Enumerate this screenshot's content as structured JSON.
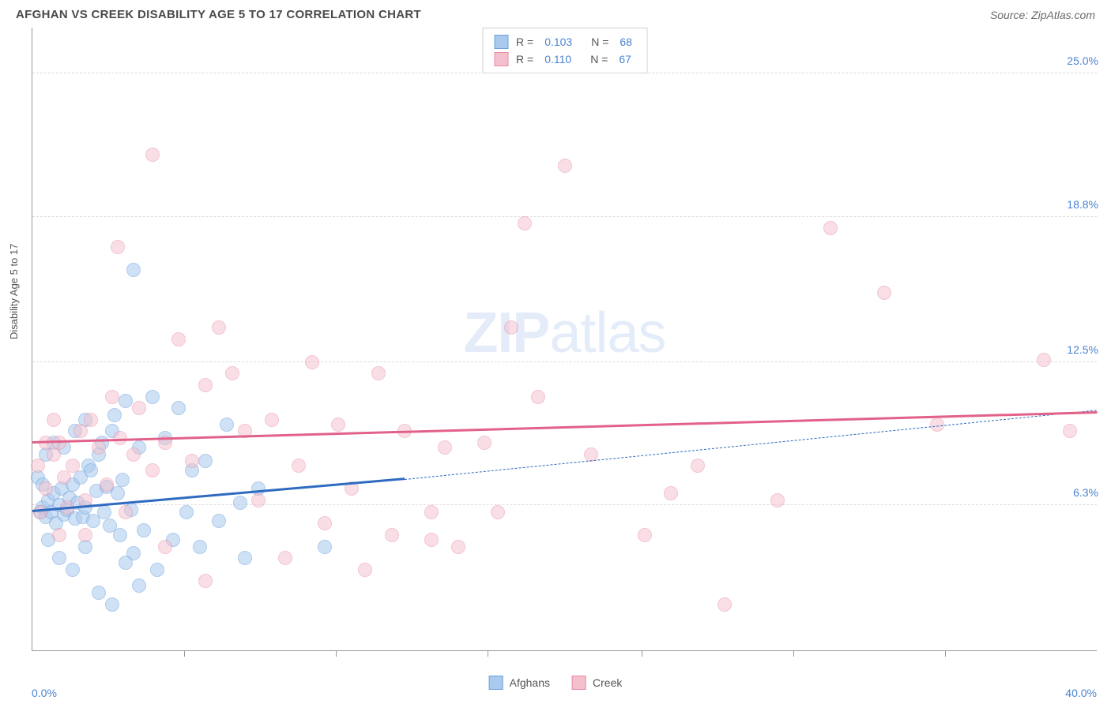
{
  "header": {
    "title": "AFGHAN VS CREEK DISABILITY AGE 5 TO 17 CORRELATION CHART",
    "source": "Source: ZipAtlas.com"
  },
  "watermark": {
    "zip": "ZIP",
    "atlas": "atlas"
  },
  "chart": {
    "type": "scatter",
    "ylabel": "Disability Age 5 to 17",
    "xlim": [
      0,
      40
    ],
    "ylim": [
      0,
      27
    ],
    "x_min_label": "0.0%",
    "x_max_label": "40.0%",
    "y_ticks": [
      {
        "value": 6.3,
        "label": "6.3%"
      },
      {
        "value": 12.5,
        "label": "12.5%"
      },
      {
        "value": 18.8,
        "label": "18.8%"
      },
      {
        "value": 25.0,
        "label": "25.0%"
      }
    ],
    "x_tick_positions": [
      5.7,
      11.4,
      17.1,
      22.9,
      28.6,
      34.3
    ],
    "grid_color": "#dcdcdc",
    "background_color": "#ffffff",
    "marker_radius": 9,
    "marker_stroke_width": 1.5,
    "series": [
      {
        "name": "Afghans",
        "fill_color": "#a9c9ee",
        "fill_opacity": 0.55,
        "stroke_color": "#6fa1db",
        "r_value": "0.103",
        "n_value": "68",
        "trend": {
          "color": "#2e6bc0",
          "x1": 0,
          "y1": 6.0,
          "x2": 14.0,
          "y2": 7.4,
          "dash_to_x": 40.0,
          "dash_to_y": 10.4
        },
        "points": [
          [
            0.3,
            6.0
          ],
          [
            0.4,
            6.2
          ],
          [
            0.5,
            5.8
          ],
          [
            0.6,
            6.5
          ],
          [
            0.7,
            6.0
          ],
          [
            0.8,
            6.8
          ],
          [
            0.9,
            5.5
          ],
          [
            1.0,
            6.3
          ],
          [
            1.1,
            7.0
          ],
          [
            1.2,
            5.9
          ],
          [
            1.3,
            6.1
          ],
          [
            1.4,
            6.6
          ],
          [
            1.5,
            7.2
          ],
          [
            1.6,
            5.7
          ],
          [
            1.7,
            6.4
          ],
          [
            1.8,
            7.5
          ],
          [
            1.9,
            5.8
          ],
          [
            2.0,
            6.2
          ],
          [
            2.1,
            8.0
          ],
          [
            2.2,
            7.8
          ],
          [
            2.3,
            5.6
          ],
          [
            2.4,
            6.9
          ],
          [
            2.5,
            8.5
          ],
          [
            2.6,
            9.0
          ],
          [
            2.7,
            6.0
          ],
          [
            2.8,
            7.1
          ],
          [
            2.9,
            5.4
          ],
          [
            3.0,
            9.5
          ],
          [
            3.1,
            10.2
          ],
          [
            3.2,
            6.8
          ],
          [
            3.3,
            5.0
          ],
          [
            3.4,
            7.4
          ],
          [
            3.5,
            10.8
          ],
          [
            3.7,
            6.1
          ],
          [
            3.8,
            4.2
          ],
          [
            4.0,
            8.8
          ],
          [
            4.2,
            5.2
          ],
          [
            4.5,
            11.0
          ],
          [
            4.7,
            3.5
          ],
          [
            5.0,
            9.2
          ],
          [
            5.3,
            4.8
          ],
          [
            5.5,
            10.5
          ],
          [
            5.8,
            6.0
          ],
          [
            6.0,
            7.8
          ],
          [
            6.3,
            4.5
          ],
          [
            6.5,
            8.2
          ],
          [
            7.0,
            5.6
          ],
          [
            7.3,
            9.8
          ],
          [
            7.8,
            6.4
          ],
          [
            8.0,
            4.0
          ],
          [
            8.5,
            7.0
          ],
          [
            1.0,
            4.0
          ],
          [
            1.5,
            3.5
          ],
          [
            2.0,
            4.5
          ],
          [
            2.5,
            2.5
          ],
          [
            3.0,
            2.0
          ],
          [
            3.5,
            3.8
          ],
          [
            4.0,
            2.8
          ],
          [
            0.5,
            8.5
          ],
          [
            0.8,
            9.0
          ],
          [
            1.2,
            8.8
          ],
          [
            1.6,
            9.5
          ],
          [
            2.0,
            10.0
          ],
          [
            3.8,
            16.5
          ],
          [
            0.2,
            7.5
          ],
          [
            0.4,
            7.2
          ],
          [
            11.0,
            4.5
          ],
          [
            0.6,
            4.8
          ]
        ]
      },
      {
        "name": "Creek",
        "fill_color": "#f4c0cd",
        "fill_opacity": 0.5,
        "stroke_color": "#e88ba5",
        "r_value": "0.110",
        "n_value": "67",
        "trend": {
          "color": "#e26189",
          "x1": 0,
          "y1": 9.0,
          "x2": 40.0,
          "y2": 10.3
        },
        "points": [
          [
            0.3,
            6.0
          ],
          [
            0.5,
            7.0
          ],
          [
            0.8,
            8.5
          ],
          [
            1.0,
            9.0
          ],
          [
            1.2,
            7.5
          ],
          [
            1.5,
            8.0
          ],
          [
            1.8,
            9.5
          ],
          [
            2.0,
            6.5
          ],
          [
            2.2,
            10.0
          ],
          [
            2.5,
            8.8
          ],
          [
            2.8,
            7.2
          ],
          [
            3.0,
            11.0
          ],
          [
            3.3,
            9.2
          ],
          [
            3.5,
            6.0
          ],
          [
            3.8,
            8.5
          ],
          [
            4.0,
            10.5
          ],
          [
            4.5,
            7.8
          ],
          [
            5.0,
            9.0
          ],
          [
            5.5,
            13.5
          ],
          [
            6.0,
            8.2
          ],
          [
            6.5,
            11.5
          ],
          [
            7.0,
            14.0
          ],
          [
            7.5,
            12.0
          ],
          [
            8.0,
            9.5
          ],
          [
            8.5,
            6.5
          ],
          [
            9.0,
            10.0
          ],
          [
            9.5,
            4.0
          ],
          [
            10.0,
            8.0
          ],
          [
            10.5,
            12.5
          ],
          [
            11.0,
            5.5
          ],
          [
            11.5,
            9.8
          ],
          [
            12.0,
            7.0
          ],
          [
            12.5,
            3.5
          ],
          [
            13.0,
            12.0
          ],
          [
            13.5,
            5.0
          ],
          [
            14.0,
            9.5
          ],
          [
            15.0,
            6.0
          ],
          [
            15.5,
            8.8
          ],
          [
            16.0,
            4.5
          ],
          [
            17.0,
            9.0
          ],
          [
            18.0,
            14.0
          ],
          [
            18.5,
            18.5
          ],
          [
            19.0,
            11.0
          ],
          [
            20.0,
            21.0
          ],
          [
            21.0,
            8.5
          ],
          [
            23.0,
            5.0
          ],
          [
            24.0,
            6.8
          ],
          [
            25.0,
            8.0
          ],
          [
            26.0,
            2.0
          ],
          [
            28.0,
            6.5
          ],
          [
            30.0,
            18.3
          ],
          [
            32.0,
            15.5
          ],
          [
            34.0,
            9.8
          ],
          [
            38.0,
            12.6
          ],
          [
            39.0,
            9.5
          ],
          [
            3.2,
            17.5
          ],
          [
            4.5,
            21.5
          ],
          [
            5.0,
            4.5
          ],
          [
            6.5,
            3.0
          ],
          [
            1.0,
            5.0
          ],
          [
            0.5,
            9.0
          ],
          [
            0.8,
            10.0
          ],
          [
            1.3,
            6.2
          ],
          [
            2.0,
            5.0
          ],
          [
            15.0,
            4.8
          ],
          [
            17.5,
            6.0
          ],
          [
            0.2,
            8.0
          ]
        ]
      }
    ],
    "bottom_legend": [
      {
        "swatch_fill": "#a9c9ee",
        "swatch_stroke": "#6fa1db",
        "label": "Afghans"
      },
      {
        "swatch_fill": "#f4c0cd",
        "swatch_stroke": "#e88ba5",
        "label": "Creek"
      }
    ]
  }
}
